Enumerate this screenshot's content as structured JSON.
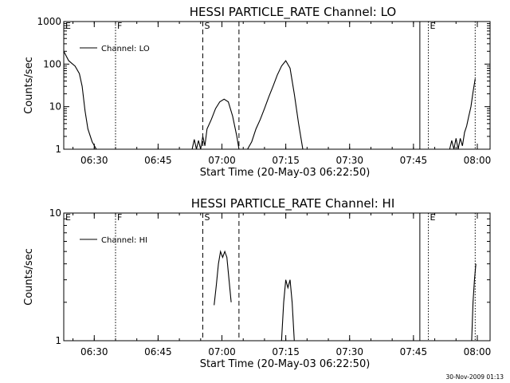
{
  "chart_data": [
    {
      "type": "line",
      "title": "HESSI PARTICLE_RATE Channel: LO",
      "xlabel": "Start Time (20-May-03 06:22:50)",
      "ylabel": "Counts/sec",
      "yscale": "log",
      "xlim": [
        "06:22:50",
        "08:03:00"
      ],
      "ylim": [
        1,
        1000
      ],
      "yticks": [
        1,
        10,
        100,
        1000
      ],
      "ytick_labels": [
        "1",
        "10",
        "100",
        "1000"
      ],
      "xticks": [
        "06:30",
        "06:45",
        "07:00",
        "07:15",
        "07:30",
        "07:45",
        "08:00"
      ],
      "legend": {
        "entries": [
          "Channel: LO"
        ],
        "placement": "top-left"
      },
      "markers": [
        {
          "label": "E",
          "time": "06:22:50",
          "style": "solid"
        },
        {
          "label": "F",
          "time": "06:35:00",
          "style": "dotted"
        },
        {
          "label": "S",
          "time": "06:55:30",
          "style": "dashed"
        },
        {
          "label": "",
          "time": "07:04:00",
          "style": "dashed"
        },
        {
          "label": "",
          "time": "07:46:30",
          "style": "solid"
        },
        {
          "label": "E",
          "time": "07:48:30",
          "style": "dotted"
        },
        {
          "label": "",
          "time": "07:59:30",
          "style": "dotted"
        }
      ],
      "series": [
        {
          "name": "Channel: LO",
          "segments": [
            {
              "x": [
                "06:22:50",
                "06:24:00",
                "06:25:30",
                "06:26:30",
                "06:27:10",
                "06:27:50",
                "06:28:30",
                "06:29:30",
                "06:30:30"
              ],
              "y": [
                200,
                120,
                90,
                60,
                30,
                8,
                3,
                1.5,
                1
              ]
            },
            {
              "x": [
                "06:53:00",
                "06:53:30",
                "06:54:00",
                "06:54:30",
                "06:55:00",
                "06:55:30",
                "06:56:00",
                "06:56:30",
                "06:57:30",
                "06:58:30",
                "06:59:30",
                "07:00:30",
                "07:01:30",
                "07:02:30",
                "07:03:30",
                "07:04:00"
              ],
              "y": [
                1,
                1.7,
                1,
                1.6,
                1,
                2,
                1.2,
                3,
                5,
                9,
                13,
                15,
                13,
                6,
                2,
                1
              ]
            },
            {
              "x": [
                "07:06:00",
                "07:07:00",
                "07:08:00",
                "07:09:00",
                "07:10:00",
                "07:11:00",
                "07:12:00",
                "07:13:00",
                "07:14:00",
                "07:15:00",
                "07:16:00",
                "07:17:00",
                "07:18:00",
                "07:19:00"
              ],
              "y": [
                1,
                1.5,
                3,
                5,
                9,
                17,
                30,
                55,
                90,
                120,
                80,
                20,
                4,
                1
              ]
            },
            {
              "x": [
                "07:53:30",
                "07:54:00",
                "07:54:30",
                "07:55:00",
                "07:55:30",
                "07:56:00",
                "07:56:30",
                "07:57:00",
                "07:57:30",
                "07:58:00",
                "07:58:30",
                "07:59:00",
                "07:59:30"
              ],
              "y": [
                1,
                1.6,
                1,
                1.8,
                1,
                1.8,
                1.2,
                2.5,
                3.5,
                6,
                10,
                22,
                45
              ]
            }
          ]
        }
      ]
    },
    {
      "type": "line",
      "title": "HESSI PARTICLE_RATE Channel: HI",
      "xlabel": "Start Time (20-May-03 06:22:50)",
      "ylabel": "Counts/sec",
      "yscale": "log",
      "xlim": [
        "06:22:50",
        "08:03:00"
      ],
      "ylim": [
        1,
        10
      ],
      "yticks": [
        1,
        10
      ],
      "ytick_labels": [
        "1",
        "10"
      ],
      "xticks": [
        "06:30",
        "06:45",
        "07:00",
        "07:15",
        "07:30",
        "07:45",
        "08:00"
      ],
      "legend": {
        "entries": [
          "Channel: HI"
        ],
        "placement": "top-left"
      },
      "markers": [
        {
          "label": "E",
          "time": "06:22:50",
          "style": "solid"
        },
        {
          "label": "F",
          "time": "06:35:00",
          "style": "dotted"
        },
        {
          "label": "S",
          "time": "06:55:30",
          "style": "dashed"
        },
        {
          "label": "",
          "time": "07:04:00",
          "style": "dashed"
        },
        {
          "label": "",
          "time": "07:46:30",
          "style": "solid"
        },
        {
          "label": "E",
          "time": "07:48:30",
          "style": "dotted"
        },
        {
          "label": "",
          "time": "07:59:30",
          "style": "dotted"
        }
      ],
      "series": [
        {
          "name": "Channel: HI",
          "segments": [
            {
              "x": [
                "06:58:10",
                "06:58:40",
                "06:59:10",
                "06:59:40",
                "07:00:10",
                "07:00:40",
                "07:01:10",
                "07:01:40",
                "07:02:10"
              ],
              "y": [
                1.9,
                2.7,
                4,
                5,
                4.5,
                5,
                4.5,
                3,
                2
              ]
            },
            {
              "x": [
                "07:14:00",
                "07:14:30",
                "07:15:00",
                "07:15:30",
                "07:16:00",
                "07:16:30",
                "07:17:00"
              ],
              "y": [
                1,
                2,
                3,
                2.6,
                3,
                2,
                1
              ]
            },
            {
              "x": [
                "07:58:40",
                "07:59:00",
                "07:59:20",
                "07:59:40"
              ],
              "y": [
                1,
                2,
                3,
                4
              ]
            }
          ]
        }
      ]
    }
  ],
  "footer_timestamp": "30-Nov-2009 01:13"
}
